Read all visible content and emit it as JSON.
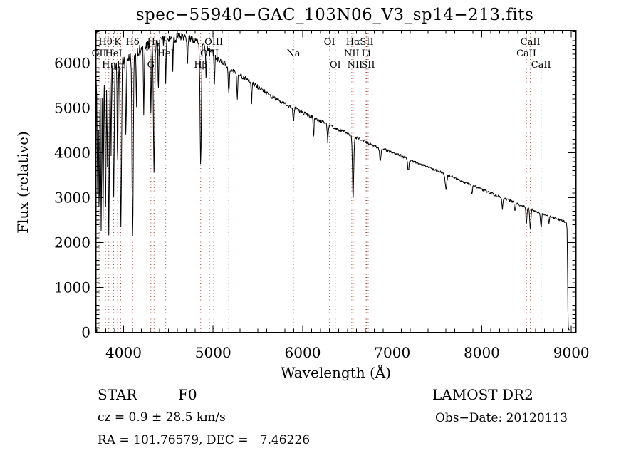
{
  "title": "spec−55940−GAC_103N06_V3_sp14−213.fits",
  "footer": {
    "object_class": "STAR",
    "subclass": "F0",
    "survey": "LAMOST DR2",
    "cz_line": "cz = 0.9 ± 28.5 km/s",
    "obs_date_line": "Obs−Date: 20120113",
    "coords_line": "RA = 101.76579, DEC =   7.46226"
  },
  "chart_data": {
    "type": "line",
    "title": "spec−55940−GAC_103N06_V3_sp14−213.fits",
    "xlabel": "Wavelength (Å)",
    "ylabel": "Flux (relative)",
    "xlim": [
      3690,
      9050
    ],
    "ylim": [
      0,
      6730
    ],
    "xticks": [
      4000,
      5000,
      6000,
      7000,
      8000,
      9000
    ],
    "yticks": [
      0,
      1000,
      2000,
      3000,
      4000,
      5000,
      6000
    ],
    "x_minor_step": 100,
    "y_minor_step": 100,
    "grid": false,
    "line_color": "#000000",
    "marker_color": "#96463c",
    "legend": null,
    "line_markers": [
      {
        "label": "Hθ",
        "wavelength": 3798,
        "row": 0
      },
      {
        "label": "K",
        "wavelength": 3933,
        "row": 0
      },
      {
        "label": "Hδ",
        "wavelength": 4101,
        "row": 0
      },
      {
        "label": "Hγ",
        "wavelength": 4340,
        "row": 0
      },
      {
        "label": "OIII",
        "wavelength": 5007,
        "row": 0
      },
      {
        "label": "OI",
        "wavelength": 6300,
        "row": 0
      },
      {
        "label": "Hα",
        "wavelength": 6563,
        "row": 0
      },
      {
        "label": "SII",
        "wavelength": 6716,
        "row": 0
      },
      {
        "label": "CaII",
        "wavelength": 8542,
        "row": 0
      },
      {
        "label": "OII",
        "wavelength": 3727,
        "row": 1
      },
      {
        "label": "HeI",
        "wavelength": 3889,
        "row": 1
      },
      {
        "label": "HeI",
        "wavelength": 4471,
        "row": 1
      },
      {
        "label": "OIII",
        "wavelength": 4959,
        "row": 1
      },
      {
        "label": "",
        "wavelength": 5175,
        "row": 1
      },
      {
        "label": "Na",
        "wavelength": 5896,
        "row": 1
      },
      {
        "label": "NII",
        "wavelength": 6548,
        "row": 1
      },
      {
        "label": "Li",
        "wavelength": 6708,
        "row": 1
      },
      {
        "label": "CaII",
        "wavelength": 8498,
        "row": 1
      },
      {
        "label": "Hη",
        "wavelength": 3835,
        "row": 2
      },
      {
        "label": "H",
        "wavelength": 3968,
        "row": 2
      },
      {
        "label": "G",
        "wavelength": 4305,
        "row": 2
      },
      {
        "label": "Hβ",
        "wavelength": 4861,
        "row": 2
      },
      {
        "label": "OI",
        "wavelength": 6364,
        "row": 2
      },
      {
        "label": "NII",
        "wavelength": 6584,
        "row": 2
      },
      {
        "label": "SII",
        "wavelength": 6731,
        "row": 2
      },
      {
        "label": "CaII",
        "wavelength": 8662,
        "row": 2
      }
    ],
    "spectrum": {
      "continuum": [
        [
          3690,
          5500
        ],
        [
          3720,
          5650
        ],
        [
          3760,
          5750
        ],
        [
          3820,
          5850
        ],
        [
          3900,
          5950
        ],
        [
          4000,
          6100
        ],
        [
          4150,
          6250
        ],
        [
          4300,
          6400
        ],
        [
          4450,
          6500
        ],
        [
          4600,
          6570
        ],
        [
          4750,
          6550
        ],
        [
          4850,
          6450
        ],
        [
          4950,
          6300
        ],
        [
          5050,
          6100
        ],
        [
          5150,
          5950
        ],
        [
          5250,
          5800
        ],
        [
          5400,
          5600
        ],
        [
          5550,
          5400
        ],
        [
          5700,
          5200
        ],
        [
          5850,
          5050
        ],
        [
          6000,
          4900
        ],
        [
          6150,
          4750
        ],
        [
          6300,
          4600
        ],
        [
          6450,
          4480
        ],
        [
          6600,
          4330
        ],
        [
          6750,
          4200
        ],
        [
          6900,
          4080
        ],
        [
          7050,
          3970
        ],
        [
          7200,
          3840
        ],
        [
          7350,
          3720
        ],
        [
          7500,
          3600
        ],
        [
          7650,
          3480
        ],
        [
          7800,
          3350
        ],
        [
          7950,
          3230
        ],
        [
          8100,
          3100
        ],
        [
          8250,
          2980
        ],
        [
          8400,
          2860
        ],
        [
          8550,
          2740
        ],
        [
          8700,
          2620
        ],
        [
          8850,
          2520
        ],
        [
          8950,
          2450
        ]
      ],
      "absorption_lines": [
        {
          "wavelength": 3710,
          "depth_flux": 3100,
          "sigma": 5
        },
        {
          "wavelength": 3727,
          "depth_flux": 2600,
          "sigma": 5
        },
        {
          "wavelength": 3750,
          "depth_flux": 2250,
          "sigma": 5
        },
        {
          "wavelength": 3771,
          "depth_flux": 2450,
          "sigma": 5
        },
        {
          "wavelength": 3798,
          "depth_flux": 2650,
          "sigma": 6
        },
        {
          "wavelength": 3819,
          "depth_flux": 3600,
          "sigma": 4
        },
        {
          "wavelength": 3835,
          "depth_flux": 2200,
          "sigma": 6
        },
        {
          "wavelength": 3860,
          "depth_flux": 3900,
          "sigma": 4
        },
        {
          "wavelength": 3889,
          "depth_flux": 2950,
          "sigma": 6
        },
        {
          "wavelength": 3933,
          "depth_flux": 3650,
          "sigma": 5
        },
        {
          "wavelength": 3970,
          "depth_flux": 2300,
          "sigma": 7
        },
        {
          "wavelength": 4026,
          "depth_flux": 4400,
          "sigma": 5
        },
        {
          "wavelength": 4101,
          "depth_flux": 2050,
          "sigma": 7
        },
        {
          "wavelength": 4144,
          "depth_flux": 5000,
          "sigma": 4
        },
        {
          "wavelength": 4226,
          "depth_flux": 4800,
          "sigma": 4
        },
        {
          "wavelength": 4305,
          "depth_flux": 4900,
          "sigma": 5
        },
        {
          "wavelength": 4340,
          "depth_flux": 3550,
          "sigma": 7
        },
        {
          "wavelength": 4388,
          "depth_flux": 5300,
          "sigma": 4
        },
        {
          "wavelength": 4471,
          "depth_flux": 5500,
          "sigma": 4
        },
        {
          "wavelength": 4550,
          "depth_flux": 5800,
          "sigma": 4
        },
        {
          "wavelength": 4713,
          "depth_flux": 5900,
          "sigma": 4
        },
        {
          "wavelength": 4861,
          "depth_flux": 3700,
          "sigma": 7
        },
        {
          "wavelength": 4922,
          "depth_flux": 5600,
          "sigma": 4
        },
        {
          "wavelength": 5015,
          "depth_flux": 5500,
          "sigma": 4
        },
        {
          "wavelength": 5175,
          "depth_flux": 5350,
          "sigma": 7
        },
        {
          "wavelength": 5270,
          "depth_flux": 5200,
          "sigma": 5
        },
        {
          "wavelength": 5430,
          "depth_flux": 5100,
          "sigma": 4
        },
        {
          "wavelength": 5896,
          "depth_flux": 4680,
          "sigma": 6
        },
        {
          "wavelength": 6122,
          "depth_flux": 4350,
          "sigma": 4
        },
        {
          "wavelength": 6280,
          "depth_flux": 4250,
          "sigma": 5
        },
        {
          "wavelength": 6563,
          "depth_flux": 2950,
          "sigma": 7
        },
        {
          "wavelength": 6867,
          "depth_flux": 3800,
          "sigma": 8
        },
        {
          "wavelength": 7180,
          "depth_flux": 3600,
          "sigma": 7
        },
        {
          "wavelength": 7600,
          "depth_flux": 3200,
          "sigma": 9
        },
        {
          "wavelength": 7890,
          "depth_flux": 3050,
          "sigma": 5
        },
        {
          "wavelength": 8230,
          "depth_flux": 2750,
          "sigma": 6
        },
        {
          "wavelength": 8370,
          "depth_flux": 2700,
          "sigma": 5
        },
        {
          "wavelength": 8498,
          "depth_flux": 2380,
          "sigma": 5
        },
        {
          "wavelength": 8542,
          "depth_flux": 2300,
          "sigma": 6
        },
        {
          "wavelength": 8662,
          "depth_flux": 2330,
          "sigma": 6
        },
        {
          "wavelength": 8750,
          "depth_flux": 2400,
          "sigma": 5
        }
      ],
      "noise_amplitude": [
        [
          3690,
          150
        ],
        [
          4200,
          130
        ],
        [
          4600,
          110
        ],
        [
          4900,
          90
        ],
        [
          5200,
          65
        ],
        [
          5600,
          50
        ],
        [
          6000,
          45
        ],
        [
          6500,
          40
        ],
        [
          7000,
          35
        ],
        [
          8000,
          30
        ],
        [
          9000,
          28
        ]
      ],
      "tail": [
        [
          8952,
          2300
        ],
        [
          8958,
          1400
        ],
        [
          8962,
          500
        ],
        [
          8966,
          120
        ],
        [
          8972,
          55
        ],
        [
          8980,
          60
        ]
      ]
    }
  }
}
